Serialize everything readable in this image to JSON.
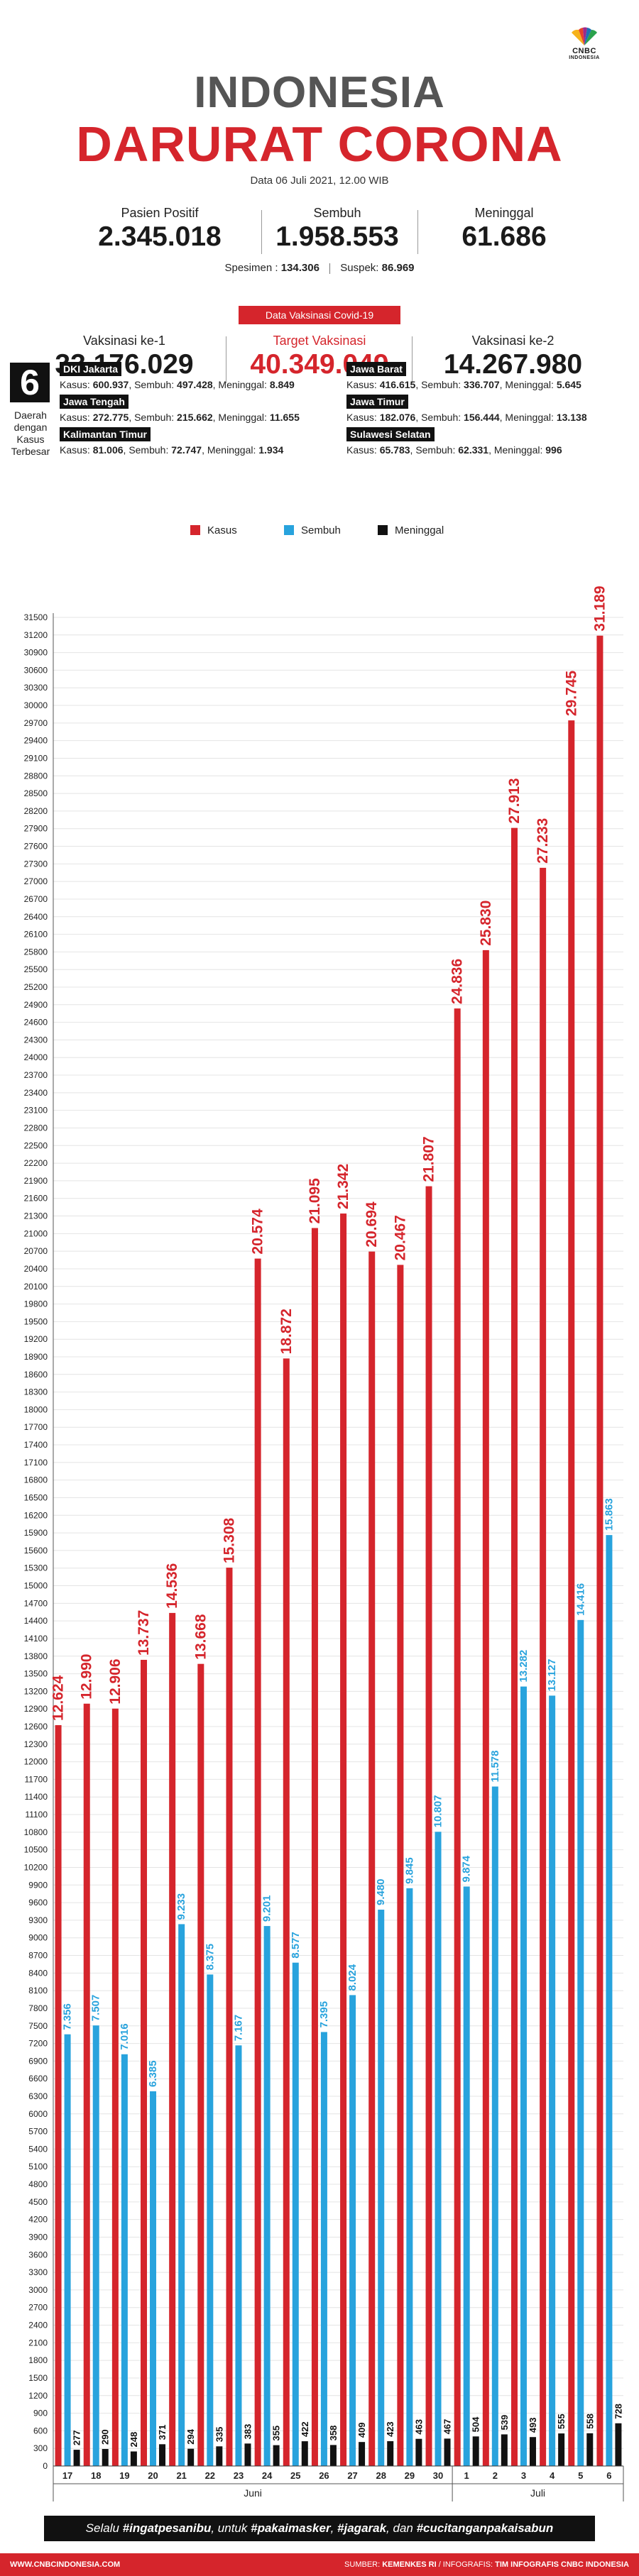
{
  "logo": {
    "line1": "CNBC",
    "line2": "INDONESIA"
  },
  "header": {
    "title_line1": "INDONESIA",
    "title_line2": "DARURAT CORONA",
    "date": "Data 06 Juli 2021, 12.00 WIB"
  },
  "stats": {
    "positif": {
      "label": "Pasien Positif",
      "value": "2.345.018"
    },
    "sembuh": {
      "label": "Sembuh",
      "value": "1.958.553"
    },
    "meninggal": {
      "label": "Meninggal",
      "value": "61.686"
    },
    "spesimen_label": "Spesimen :",
    "spesimen_value": "134.306",
    "suspek_label": "Suspek:",
    "suspek_value": "86.969"
  },
  "vaksin": {
    "banner": "Data Vaksinasi Covid-19",
    "ke1": {
      "label": "Vaksinasi ke-1",
      "value": "33.176.029"
    },
    "target": {
      "label": "Target Vaksinasi",
      "value": "40.349.049"
    },
    "ke2": {
      "label": "Vaksinasi ke-2",
      "value": "14.267.980"
    }
  },
  "daerah": {
    "number": "6",
    "label_lines": [
      "Daerah",
      "dengan",
      "Kasus",
      "Terbesar"
    ],
    "kasus_label": "Kasus:",
    "sembuh_label": "Sembuh:",
    "meninggal_label": "Meninggal:",
    "provinces": [
      {
        "name": "DKI Jakarta",
        "kasus": "600.937",
        "sembuh": "497.428",
        "meninggal": "8.849"
      },
      {
        "name": "Jawa Barat",
        "kasus": "416.615",
        "sembuh": "336.707",
        "meninggal": "5.645"
      },
      {
        "name": "Jawa Tengah",
        "kasus": "272.775",
        "sembuh": "215.662",
        "meninggal": "11.655"
      },
      {
        "name": "Jawa Timur",
        "kasus": "182.076",
        "sembuh": "156.444",
        "meninggal": "13.138"
      },
      {
        "name": "Kalimantan Timur",
        "kasus": "81.006",
        "sembuh": "72.747",
        "meninggal": "1.934"
      },
      {
        "name": "Sulawesi Selatan",
        "kasus": "65.783",
        "sembuh": "62.331",
        "meninggal": "996"
      }
    ]
  },
  "colors": {
    "kasus": "#d5252c",
    "sembuh": "#28a3dd",
    "meninggal": "#111111",
    "brand_red": "#d5252c"
  },
  "chart_data": {
    "type": "bar",
    "categories": [
      "17",
      "18",
      "19",
      "20",
      "21",
      "22",
      "23",
      "24",
      "25",
      "26",
      "27",
      "28",
      "29",
      "30",
      "1",
      "2",
      "3",
      "4",
      "5",
      "6"
    ],
    "month_groups": [
      {
        "label": "Juni",
        "count": 14
      },
      {
        "label": "Juli",
        "count": 6
      }
    ],
    "series": [
      {
        "name": "Kasus",
        "values": [
          12624,
          12990,
          12906,
          13737,
          14536,
          13668,
          15308,
          20574,
          18872,
          21095,
          21342,
          20694,
          20467,
          21807,
          24836,
          25830,
          27913,
          27233,
          29745,
          31189
        ],
        "labels": [
          "12.624",
          "12.990",
          "12.906",
          "13.737",
          "14.536",
          "13.668",
          "15.308",
          "20.574",
          "18.872",
          "21.095",
          "21.342",
          "20.694",
          "20.467",
          "21.807",
          "24.836",
          "25.830",
          "27.913",
          "27.233",
          "29.745",
          "31.189"
        ]
      },
      {
        "name": "Sembuh",
        "values": [
          7356,
          7507,
          7016,
          6385,
          9233,
          8375,
          7167,
          9201,
          8577,
          7395,
          8024,
          9480,
          9845,
          10807,
          9874,
          11578,
          13282,
          13127,
          14416,
          15863
        ],
        "labels": [
          "7.356",
          "7.507",
          "7.016",
          "6.385",
          "9.233",
          "8.375",
          "7.167",
          "9.201",
          "8.577",
          "7.395",
          "8.024",
          "9.480",
          "9.845",
          "10.807",
          "9.874",
          "11.578",
          "13.282",
          "13.127",
          "14.416",
          "15.863"
        ]
      },
      {
        "name": "Meninggal",
        "values": [
          277,
          290,
          248,
          371,
          294,
          335,
          383,
          355,
          422,
          358,
          409,
          423,
          463,
          467,
          504,
          539,
          493,
          555,
          558,
          728
        ],
        "labels": [
          "277",
          "290",
          "248",
          "371",
          "294",
          "335",
          "383",
          "355",
          "422",
          "358",
          "409",
          "423",
          "463",
          "467",
          "504",
          "539",
          "493",
          "555",
          "558",
          "728"
        ]
      }
    ],
    "ylim": [
      0,
      31500
    ],
    "ytick_step": 300,
    "grid": true,
    "legend_position": "top"
  },
  "slogan": {
    "p1": "Selalu ",
    "b1": "#ingatpesanibu",
    "p2": ", untuk ",
    "b2": "#pakaimasker",
    "p3": ", ",
    "b3": "#jagarak",
    "p4": ", dan ",
    "b4": "#cucitanganpakaisabun"
  },
  "footer": {
    "left": "WWW.CNBCINDONESIA.COM",
    "source_label": "SUMBER: ",
    "source_value": "KEMENKES RI",
    "mid": " / INFOGRAFIS: ",
    "team": "TIM INFOGRAFIS CNBC INDONESIA"
  }
}
